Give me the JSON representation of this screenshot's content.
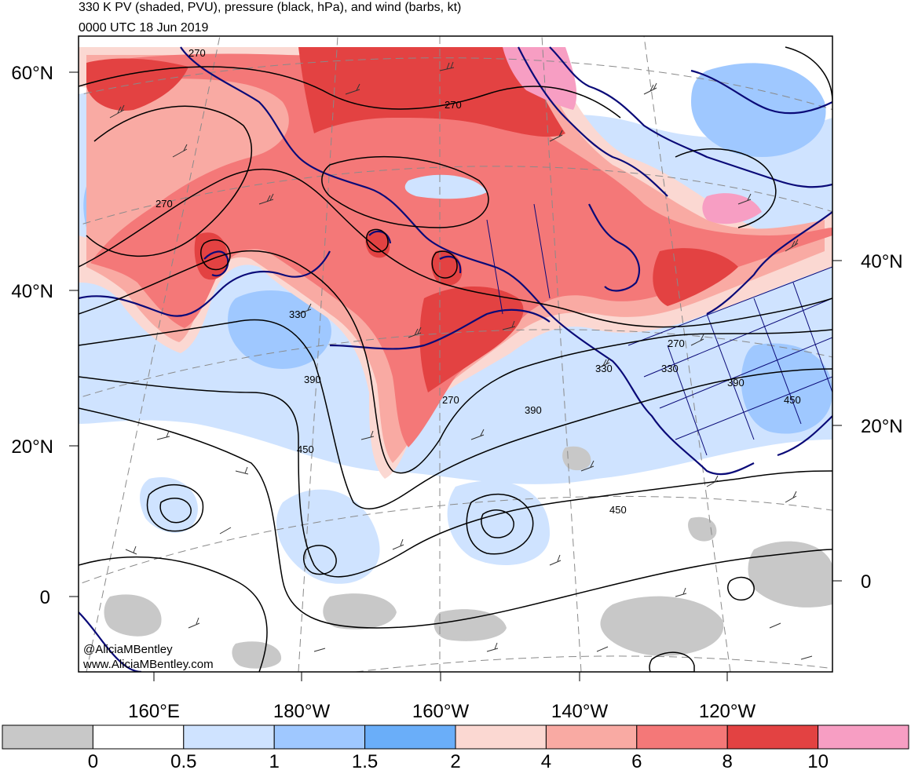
{
  "header": {
    "title": "330 K PV (shaded, PVU), pressure (black, hPa), and wind (barbs, kt)",
    "valid_time": "0000 UTC 18 Jun 2019"
  },
  "latitude_labels_left": [
    "60°N",
    "40°N",
    "20°N",
    "0"
  ],
  "latitude_labels_right": [
    "40°N",
    "20°N",
    "0"
  ],
  "longitude_labels": [
    "160°E",
    "180°W",
    "160°W",
    "140°W",
    "120°W"
  ],
  "pressure_contour_labels": [
    "270",
    "270",
    "270",
    "330",
    "390",
    "270",
    "390",
    "450",
    "270",
    "330",
    "330",
    "390",
    "450",
    "450"
  ],
  "colorbar": {
    "tick_labels": [
      "0",
      "0.5",
      "1",
      "1.5",
      "2",
      "4",
      "6",
      "8",
      "10"
    ],
    "colors": [
      "#c8c8c8",
      "#ffffff",
      "#cfe3ff",
      "#9fc8ff",
      "#6aaef9",
      "#fbd8d2",
      "#f9aaa3",
      "#f47878",
      "#e34242",
      "#f79ec3"
    ]
  },
  "colors": {
    "pv_low": "#cfe3ff",
    "pv_mid": "#6aaef9",
    "pv_high_pink": "#fbd8d2",
    "pv_high_red": "#e34242",
    "pv_extreme": "#f79ec3",
    "coastline": "#0a0a78",
    "contour": "#000000",
    "grid": "#888888"
  },
  "credit": {
    "line1": "@AliciaMBentley",
    "line2": "www.AliciaMBentley.com"
  }
}
